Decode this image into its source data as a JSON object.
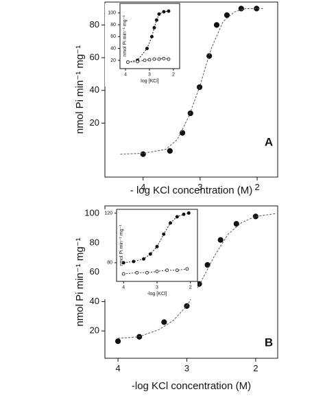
{
  "chart_data": [
    {
      "type": "scatter",
      "panel_label": "A",
      "xlabel": "- log KCl concentration (M)",
      "ylabel": "nmol Pi min⁻¹ mg⁻¹",
      "xlim": [
        4.67,
        1.64
      ],
      "ylim": [
        -13,
        94
      ],
      "xticks": [
        4,
        3,
        2
      ],
      "yticks": [
        20,
        40,
        60,
        80
      ],
      "series": [
        {
          "color": "#111111",
          "marker": "filled",
          "line": false,
          "x": [
            4.0,
            3.53,
            3.31,
            3.17,
            3.01,
            2.84,
            2.71,
            2.53,
            2.28,
            2.01
          ],
          "values": [
            1,
            3,
            14,
            26,
            42,
            61,
            80,
            86,
            90,
            90
          ]
        },
        {
          "color": "#555555",
          "marker": "none",
          "line": true,
          "x": [
            4.4,
            4.0,
            3.6,
            3.4,
            3.2,
            3.0,
            2.9,
            2.8,
            2.6,
            2.4,
            2.2,
            2.0,
            1.9
          ],
          "values": [
            1,
            1.5,
            4,
            10,
            24,
            43,
            55,
            66,
            82,
            88,
            90,
            90,
            90
          ]
        }
      ],
      "inset": {
        "xlabel": "log [KCl]",
        "ylabel": "nmol Pi min⁻¹ mg⁻¹",
        "xlim": [
          4.23,
          1.74
        ],
        "ylim": [
          6,
          116
        ],
        "xticks": [
          4,
          3,
          2
        ],
        "yticks": [
          20,
          40,
          60,
          80,
          100
        ],
        "series": [
          {
            "color": "#111111",
            "marker": "filled",
            "line": true,
            "x": [
              3.9,
              3.5,
              3.1,
              2.9,
              2.8,
              2.7,
              2.6,
              2.4,
              2.2
            ],
            "values": [
              17,
              20,
              40,
              60,
              75,
              88,
              98,
              102,
              103
            ]
          },
          {
            "color": "#333333",
            "marker": "open",
            "line": true,
            "x": [
              3.9,
              3.5,
              3.2,
              3.0,
              2.8,
              2.6,
              2.4,
              2.2
            ],
            "values": [
              17,
              18,
              20,
              21,
              22,
              22,
              23,
              22
            ]
          }
        ]
      }
    },
    {
      "type": "scatter",
      "panel_label": "B",
      "xlabel": "-log KCl concentration (M)",
      "ylabel": "nmol Pi min⁻¹ mg⁻¹",
      "xlim": [
        4.19,
        1.68
      ],
      "ylim": [
        1.4,
        105.2
      ],
      "xticks": [
        4,
        3,
        2
      ],
      "yticks": [
        20,
        40,
        60,
        80,
        100
      ],
      "series": [
        {
          "color": "#111111",
          "marker": "filled",
          "line": false,
          "x": [
            4.0,
            3.69,
            3.33,
            3.0,
            2.82,
            2.7,
            2.51,
            2.28,
            2.0
          ],
          "values": [
            13,
            16,
            26,
            37,
            52,
            65,
            82,
            93,
            98
          ]
        },
        {
          "color": "#555555",
          "marker": "none",
          "line": true,
          "x": [
            4.0,
            3.7,
            3.4,
            3.2,
            3.0,
            2.9,
            2.8,
            2.7,
            2.6,
            2.4,
            2.2,
            2.0,
            1.7
          ],
          "values": [
            15,
            16,
            21,
            27,
            37,
            45,
            53,
            62,
            71,
            86,
            94,
            98,
            100
          ]
        }
      ],
      "inset": {
        "xlabel": "-log [KCl]",
        "ylabel": "nmol Pi min⁻¹ mg⁻¹",
        "xlim": [
          4.21,
          1.79
        ],
        "ylim": [
          65,
          123
        ],
        "xticks": [
          4,
          3,
          2
        ],
        "yticks": [
          80,
          120
        ],
        "series": [
          {
            "color": "#111111",
            "marker": "filled",
            "line": true,
            "x": [
              4.0,
              3.7,
              3.4,
              3.2,
              3.0,
              2.8,
              2.6,
              2.4,
              2.2,
              2.05
            ],
            "values": [
              80,
              81,
              83,
              87,
              93,
              103,
              112,
              117,
              119,
              120
            ]
          },
          {
            "color": "#333333",
            "marker": "open",
            "line": true,
            "x": [
              4.0,
              3.6,
              3.3,
              3.0,
              2.7,
              2.4,
              2.1
            ],
            "values": [
              71,
              72,
              72,
              73,
              74,
              74,
              75
            ]
          }
        ]
      }
    }
  ]
}
